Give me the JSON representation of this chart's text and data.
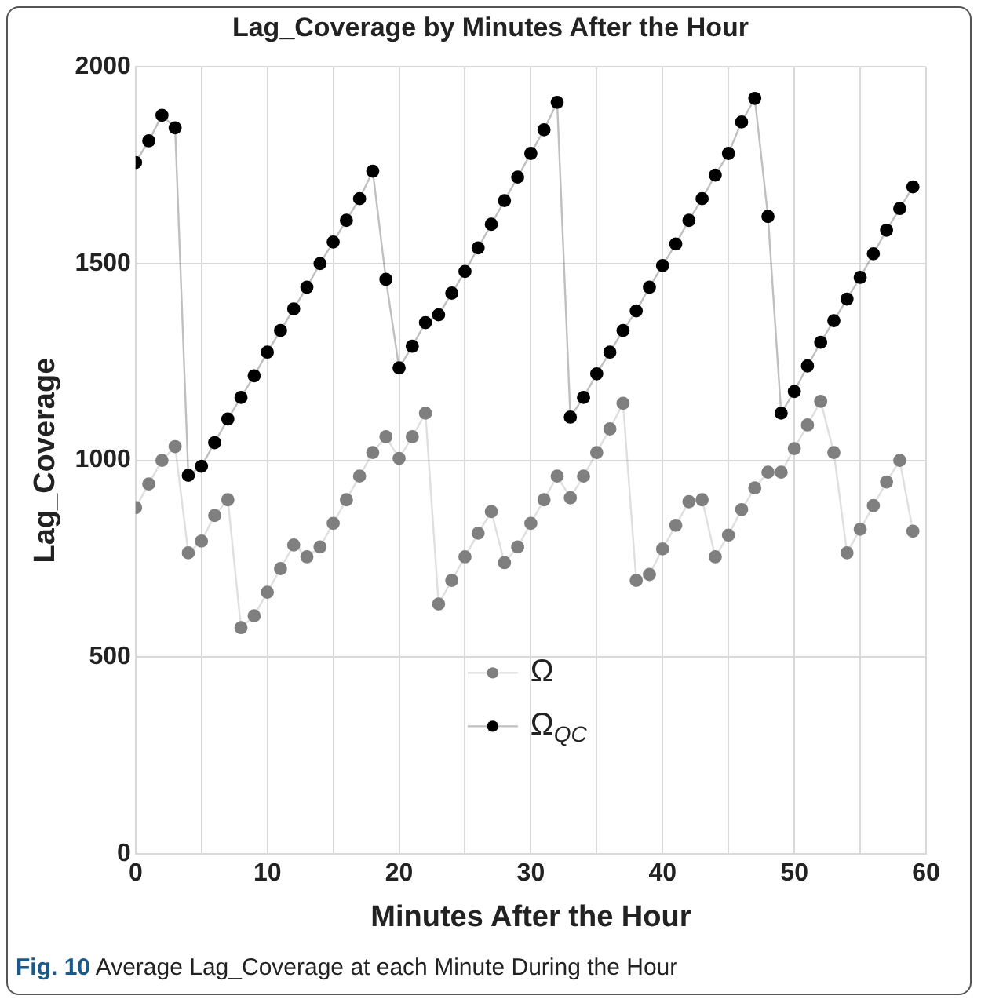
{
  "chart_data": {
    "type": "line",
    "title": "Lag_Coverage by Minutes After the Hour",
    "xlabel": "Minutes After the Hour",
    "ylabel": "Lag_Coverage",
    "x": [
      0,
      1,
      2,
      3,
      4,
      5,
      6,
      7,
      8,
      9,
      10,
      11,
      12,
      13,
      14,
      15,
      16,
      17,
      18,
      19,
      20,
      21,
      22,
      23,
      24,
      25,
      26,
      27,
      28,
      29,
      30,
      31,
      32,
      33,
      34,
      35,
      36,
      37,
      38,
      39,
      40,
      41,
      42,
      43,
      44,
      45,
      46,
      47,
      48,
      49,
      50,
      51,
      52,
      53,
      54,
      55,
      56,
      57,
      58,
      59
    ],
    "series": [
      {
        "name": "Ω",
        "color": "#7f7f7f",
        "values": [
          880,
          940,
          1000,
          1035,
          765,
          795,
          860,
          900,
          575,
          605,
          665,
          725,
          785,
          755,
          780,
          840,
          900,
          960,
          1020,
          1060,
          1005,
          1060,
          1120,
          635,
          695,
          755,
          815,
          870,
          740,
          780,
          840,
          900,
          960,
          905,
          960,
          1020,
          1080,
          1145,
          695,
          710,
          775,
          835,
          895,
          900,
          755,
          810,
          875,
          930,
          970,
          970,
          1030,
          1090,
          1150,
          1020,
          765,
          825,
          885,
          945,
          1000,
          820
        ]
      },
      {
        "name": "Ω$_{QC}$",
        "color": "#000000",
        "values": [
          1757,
          1812,
          1877,
          1845,
          962,
          985,
          1045,
          1105,
          1160,
          1215,
          1275,
          1330,
          1385,
          1440,
          1500,
          1555,
          1610,
          1665,
          1735,
          1460,
          1235,
          1290,
          1350,
          1370,
          1425,
          1480,
          1540,
          1600,
          1660,
          1720,
          1780,
          1840,
          1910,
          1110,
          1160,
          1220,
          1275,
          1330,
          1380,
          1440,
          1495,
          1550,
          1610,
          1665,
          1725,
          1780,
          1860,
          1920,
          1620,
          1120,
          1175,
          1240,
          1300,
          1355,
          1410,
          1465,
          1525,
          1585,
          1640,
          1695
        ]
      }
    ],
    "xlim": [
      0,
      60
    ],
    "xticks": [
      0,
      {
        "value": 5,
        "label": null
      },
      10,
      {
        "value": 15,
        "label": null
      },
      20,
      {
        "value": 25,
        "label": null
      },
      30,
      {
        "value": 35,
        "label": null
      },
      40,
      {
        "value": 45,
        "label": null
      },
      50,
      {
        "value": 55,
        "label": null
      },
      60
    ],
    "ylim": [
      0,
      2000
    ],
    "yticks": [
      0,
      500,
      1000,
      1500,
      2000
    ],
    "grid": true,
    "legend": "center",
    "marker": "circle",
    "line_style": "solid",
    "annotations": [
      "Fig. 10 Average Lag_Coverage at each Minute During the Hour"
    ]
  }
}
